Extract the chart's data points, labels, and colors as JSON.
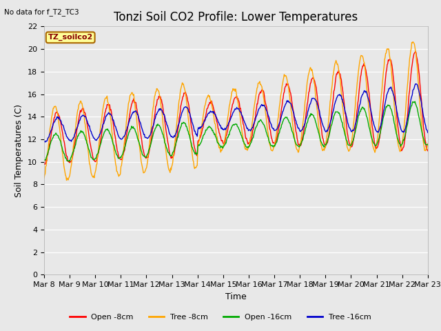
{
  "title": "Tonzi Soil CO2 Profile: Lower Temperatures",
  "no_data_text": "No data for f_T2_TC3",
  "legend_box_text": "TZ_soilco2",
  "xlabel": "Time",
  "ylabel": "Soil Temperatures (C)",
  "ylim": [
    0,
    22
  ],
  "yticks": [
    0,
    2,
    4,
    6,
    8,
    10,
    12,
    14,
    16,
    18,
    20,
    22
  ],
  "xtick_labels": [
    "Mar 8",
    "Mar 9",
    "Mar 10",
    "Mar 11",
    "Mar 12",
    "Mar 13",
    "Mar 14",
    "Mar 15",
    "Mar 16",
    "Mar 17",
    "Mar 18",
    "Mar 19",
    "Mar 20",
    "Mar 21",
    "Mar 22",
    "Mar 23"
  ],
  "line_colors": [
    "#ff0000",
    "#ffa500",
    "#00aa00",
    "#0000cc"
  ],
  "legend_labels": [
    "Open -8cm",
    "Tree -8cm",
    "Open -16cm",
    "Tree -16cm"
  ],
  "bg_color": "#e8e8e8",
  "title_fontsize": 12,
  "axis_label_fontsize": 9,
  "tick_fontsize": 8,
  "n_days": 15,
  "pts_per_day": 48
}
